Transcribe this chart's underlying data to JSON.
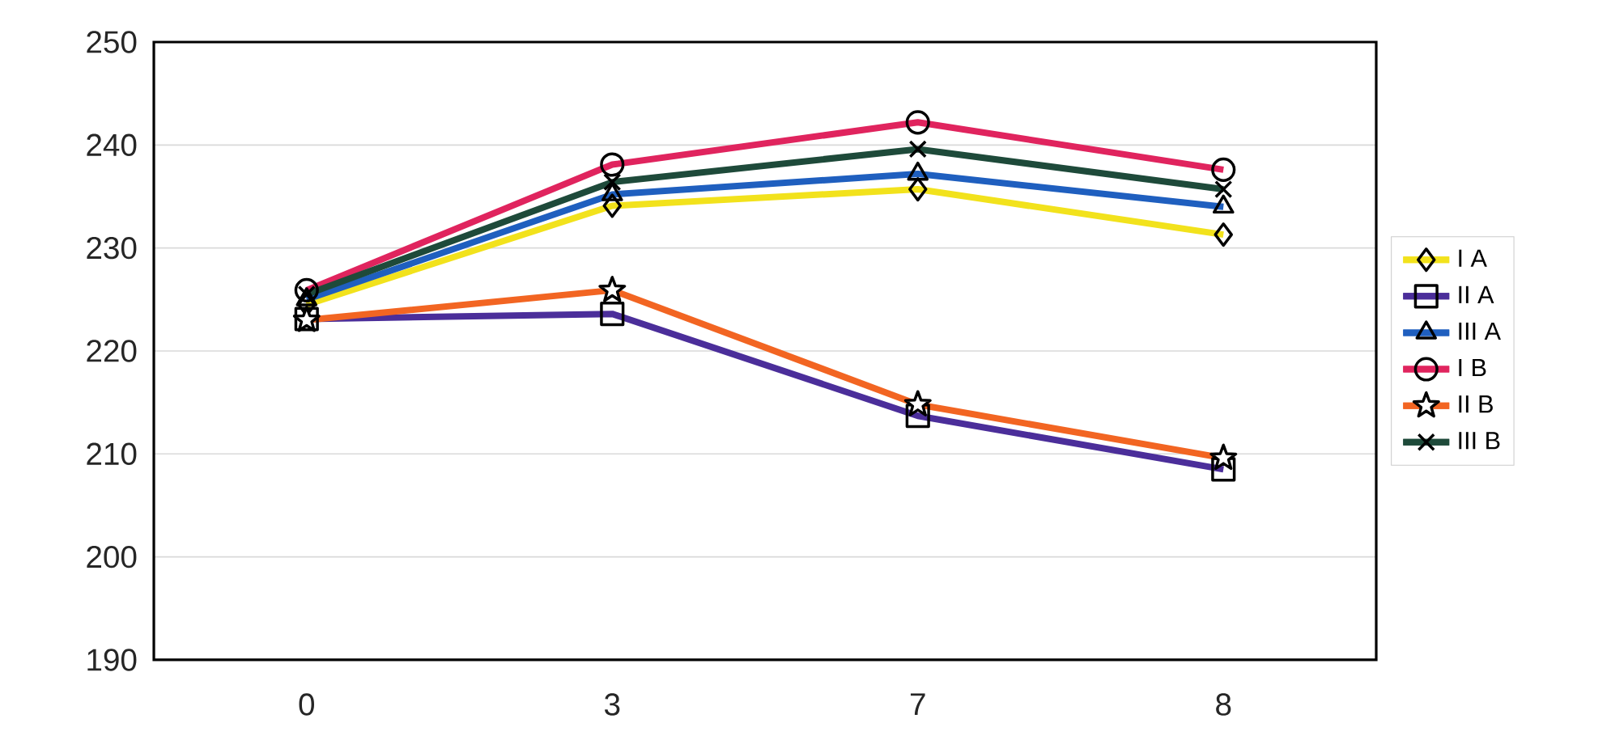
{
  "chart_data": {
    "type": "line",
    "categories": [
      "0",
      "3",
      "7",
      "8"
    ],
    "series": [
      {
        "name": "I A",
        "color": "#f2e21c",
        "marker": "diamond",
        "values": [
          224.5,
          234.1,
          235.7,
          231.3
        ]
      },
      {
        "name": "II A",
        "color": "#4b2e9a",
        "marker": "square",
        "values": [
          223.1,
          223.6,
          213.7,
          208.5
        ]
      },
      {
        "name": "III A",
        "color": "#1f5fbf",
        "marker": "triangle",
        "values": [
          225.0,
          235.2,
          237.2,
          234.0
        ]
      },
      {
        "name": "I B",
        "color": "#e0245e",
        "marker": "circle",
        "values": [
          225.9,
          238.1,
          242.2,
          237.6
        ]
      },
      {
        "name": "II B",
        "color": "#f26522",
        "marker": "star",
        "values": [
          223.0,
          225.9,
          214.8,
          209.6
        ]
      },
      {
        "name": "III B",
        "color": "#1e4a3a",
        "marker": "cross",
        "values": [
          225.5,
          236.4,
          239.6,
          235.7
        ]
      }
    ],
    "ylim": [
      190,
      250
    ],
    "yticks": [
      190,
      200,
      210,
      220,
      230,
      240,
      250
    ],
    "grid": "y",
    "legend": "right",
    "line_style": "solid"
  }
}
